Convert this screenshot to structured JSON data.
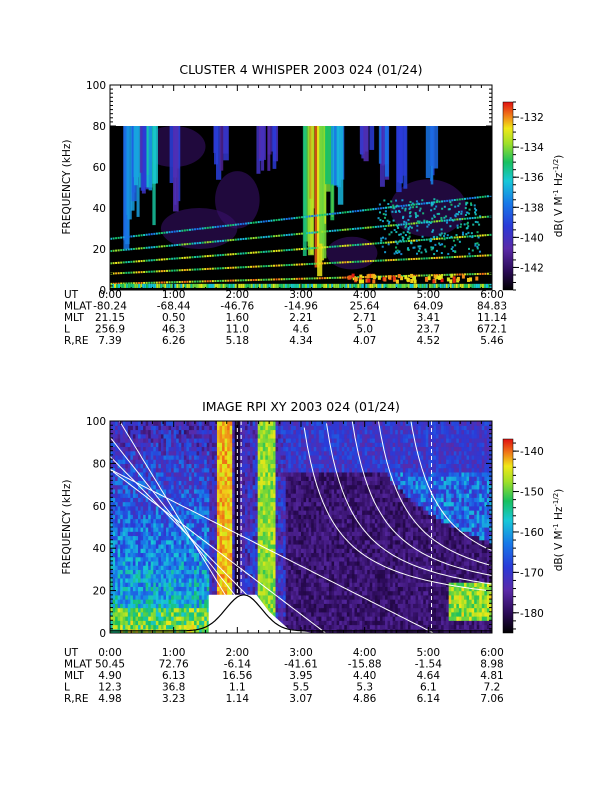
{
  "chart_data": [
    {
      "type": "heatmap",
      "title": "CLUSTER 4 WHISPER 2003 024 (01/24)",
      "ylabel": "FREQUENCY (kHz)",
      "ylim": [
        0,
        100
      ],
      "y_ticks": [
        "0",
        "20",
        "40",
        "60",
        "80",
        "100"
      ],
      "x_ticks": [
        "0:00",
        "1:00",
        "2:00",
        "3:00",
        "4:00",
        "5:00",
        "6:00"
      ],
      "data_top_khz": 80,
      "colorbar": {
        "label": "dB( V M",
        "sup1": "-1",
        "mid": " Hz",
        "sup2": "-1/2",
        "close": ")",
        "range": [
          -143.5,
          -131
        ],
        "ticks": [
          "-132",
          "-134",
          "-136",
          "-138",
          "-140",
          "-142"
        ]
      },
      "ephemeris": [
        {
          "label": "UT",
          "values": [
            "0:00",
            "1:00",
            "2:00",
            "3:00",
            "4:00",
            "5:00",
            "6:00"
          ]
        },
        {
          "label": "MLAT",
          "values": [
            "-80.24",
            "-68.44",
            "-46.76",
            "-14.96",
            "25.64",
            "64.09",
            "84.83"
          ]
        },
        {
          "label": "MLT",
          "values": [
            "21.15",
            "0.50",
            "1.60",
            "2.21",
            "2.71",
            "3.41",
            "11.14"
          ]
        },
        {
          "label": "L",
          "values": [
            "256.9",
            "46.3",
            "11.0",
            "4.6",
            "5.0",
            "23.7",
            "672.1"
          ]
        },
        {
          "label": "R,RE",
          "values": [
            "7.39",
            "6.26",
            "5.18",
            "4.34",
            "4.07",
            "4.52",
            "5.46"
          ]
        }
      ]
    },
    {
      "type": "heatmap",
      "title": "IMAGE RPI XY 2003 024 (01/24)",
      "ylabel": "FREQUENCY (kHz)",
      "ylim": [
        0,
        100
      ],
      "y_ticks": [
        "0",
        "20",
        "40",
        "60",
        "80",
        "100"
      ],
      "x_ticks": [
        "0:00",
        "1:00",
        "2:00",
        "3:00",
        "4:00",
        "5:00",
        "6:00"
      ],
      "colorbar": {
        "label": "dB( V M",
        "sup1": "-1",
        "mid": " Hz",
        "sup2": "-1/2",
        "close": ")",
        "range": [
          -185,
          -137
        ],
        "ticks": [
          "-140",
          "-150",
          "-160",
          "-170",
          "-180"
        ]
      },
      "ephemeris": [
        {
          "label": "UT",
          "values": [
            "0:00",
            "1:00",
            "2:00",
            "3:00",
            "4:00",
            "5:00",
            "6:00"
          ]
        },
        {
          "label": "MLAT",
          "values": [
            "50.45",
            "72.76",
            "-6.14",
            "-41.61",
            "-15.88",
            "-1.54",
            "8.98"
          ]
        },
        {
          "label": "MLT",
          "values": [
            "4.90",
            "6.13",
            "16.56",
            "3.95",
            "4.40",
            "4.64",
            "4.81"
          ]
        },
        {
          "label": "L",
          "values": [
            "12.3",
            "36.8",
            "1.1",
            "5.5",
            "5.3",
            "6.1",
            "7.2"
          ]
        },
        {
          "label": "R,RE",
          "values": [
            "4.98",
            "3.23",
            "1.14",
            "3.07",
            "4.86",
            "6.14",
            "7.06"
          ]
        }
      ]
    }
  ]
}
